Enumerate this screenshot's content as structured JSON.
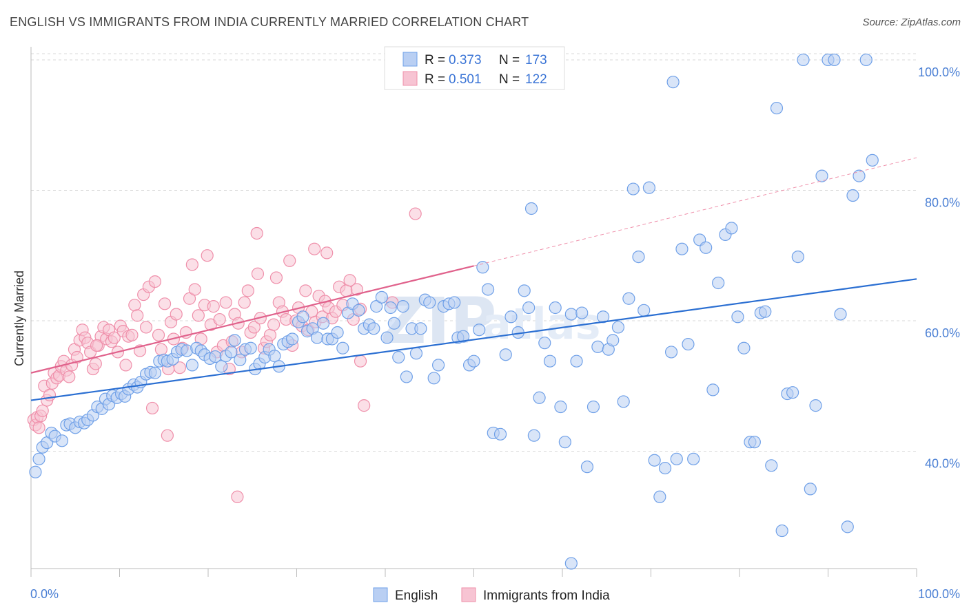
{
  "title": "ENGLISH VS IMMIGRANTS FROM INDIA CURRENTLY MARRIED CORRELATION CHART",
  "source": "Source: ZipAtlas.com",
  "watermark": {
    "zip": "ZIP",
    "atlas": "atlas"
  },
  "colors": {
    "english": "#6fa0e8",
    "english_fill": "#b9cff3",
    "english_line": "#2b6fd2",
    "india": "#ef8faa",
    "india_fill": "#f7c4d3",
    "india_line": "#e0628c",
    "axis_text": "#4a7fd4",
    "grid": "#d8d8d8"
  },
  "legend": {
    "rows": [
      {
        "r_label": "R =",
        "r_value": "0.373",
        "n_label": "N =",
        "n_value": "173"
      },
      {
        "r_label": "R =",
        "r_value": "0.501",
        "n_label": "N =",
        "n_value": "122"
      }
    ]
  },
  "chart_data": {
    "type": "scatter",
    "title": "ENGLISH VS IMMIGRANTS FROM INDIA CURRENTLY MARRIED CORRELATION CHART",
    "xlabel": "",
    "ylabel": "Currently Married",
    "x_tick_labels": [
      "0.0%",
      "100.0%"
    ],
    "y_tick_labels": [
      "40.0%",
      "60.0%",
      "80.0%",
      "100.0%"
    ],
    "y_ticks": [
      40,
      60,
      80,
      100
    ],
    "xlim": [
      0,
      100
    ],
    "ylim": [
      22,
      102
    ],
    "grid": true,
    "legend_position": "top-center and bottom",
    "series": [
      {
        "name": "English",
        "color": "#6fa0e8",
        "r": 0.373,
        "n": 173,
        "trend": {
          "x": [
            0,
            100
          ],
          "y": [
            47.8,
            66.4
          ]
        },
        "points": [
          [
            0.5,
            36.8
          ],
          [
            0.9,
            38.8
          ],
          [
            1.3,
            40.6
          ],
          [
            1.8,
            41.3
          ],
          [
            2.3,
            42.8
          ],
          [
            2.7,
            42.3
          ],
          [
            3.5,
            41.6
          ],
          [
            4,
            44
          ],
          [
            4.4,
            44.2
          ],
          [
            5,
            43.6
          ],
          [
            5.5,
            44.5
          ],
          [
            6,
            44.3
          ],
          [
            6.4,
            44.8
          ],
          [
            7,
            45.5
          ],
          [
            7.5,
            46.8
          ],
          [
            8,
            46.5
          ],
          [
            8.4,
            48
          ],
          [
            8.8,
            47.2
          ],
          [
            9.2,
            48.5
          ],
          [
            9.7,
            48.2
          ],
          [
            10.2,
            48.8
          ],
          [
            10.6,
            48.4
          ],
          [
            11,
            49.5
          ],
          [
            11.6,
            50.2
          ],
          [
            12,
            49.8
          ],
          [
            12.4,
            50.6
          ],
          [
            13,
            51.8
          ],
          [
            13.5,
            52.1
          ],
          [
            14,
            52
          ],
          [
            14.5,
            53.8
          ],
          [
            15,
            54
          ],
          [
            15.4,
            53.8
          ],
          [
            16,
            54.1
          ],
          [
            16.5,
            55.2
          ],
          [
            17,
            55.6
          ],
          [
            17.6,
            55.4
          ],
          [
            18.2,
            53.2
          ],
          [
            18.7,
            55.8
          ],
          [
            19.2,
            55.4
          ],
          [
            19.6,
            54.8
          ],
          [
            20.2,
            54.2
          ],
          [
            20.8,
            54.5
          ],
          [
            21.5,
            53
          ],
          [
            22,
            54.6
          ],
          [
            22.6,
            55.2
          ],
          [
            23,
            57
          ],
          [
            23.6,
            54
          ],
          [
            24.2,
            55.6
          ],
          [
            24.8,
            55.8
          ],
          [
            25.3,
            52.6
          ],
          [
            25.8,
            53.4
          ],
          [
            26.4,
            54.4
          ],
          [
            26.9,
            55.6
          ],
          [
            27.5,
            54.6
          ],
          [
            28,
            53
          ],
          [
            28.5,
            56.4
          ],
          [
            29,
            56.8
          ],
          [
            29.5,
            57.2
          ],
          [
            30.2,
            59.8
          ],
          [
            30.7,
            60.6
          ],
          [
            31.2,
            58.4
          ],
          [
            31.8,
            58.8
          ],
          [
            32.3,
            57.4
          ],
          [
            33,
            59.6
          ],
          [
            33.5,
            57.2
          ],
          [
            34,
            57.2
          ],
          [
            34.6,
            58.2
          ],
          [
            35.2,
            55.8
          ],
          [
            35.8,
            61.2
          ],
          [
            36.3,
            62.6
          ],
          [
            37,
            61.6
          ],
          [
            37.6,
            58.8
          ],
          [
            38.2,
            59.4
          ],
          [
            38.7,
            58.8
          ],
          [
            39,
            62.2
          ],
          [
            39.6,
            63.6
          ],
          [
            40.2,
            57.4
          ],
          [
            40.6,
            62
          ],
          [
            41,
            59.6
          ],
          [
            41.5,
            54.4
          ],
          [
            42,
            62.2
          ],
          [
            42.4,
            51.4
          ],
          [
            43,
            58.8
          ],
          [
            43.5,
            55
          ],
          [
            44,
            58.8
          ],
          [
            44.5,
            63.2
          ],
          [
            45,
            62.8
          ],
          [
            45.5,
            51.2
          ],
          [
            46,
            53.2
          ],
          [
            46.6,
            62.2
          ],
          [
            47.2,
            62.6
          ],
          [
            47.8,
            62.8
          ],
          [
            48.2,
            57.4
          ],
          [
            48.8,
            57.6
          ],
          [
            49.5,
            53.2
          ],
          [
            50,
            53.8
          ],
          [
            50.6,
            58.6
          ],
          [
            51,
            68.2
          ],
          [
            51.6,
            64.8
          ],
          [
            52.2,
            42.8
          ],
          [
            53,
            42.6
          ],
          [
            53.6,
            54.8
          ],
          [
            54.2,
            60.6
          ],
          [
            55,
            58.2
          ],
          [
            55.7,
            64.6
          ],
          [
            56.2,
            62
          ],
          [
            56.8,
            42.4
          ],
          [
            57.4,
            48.2
          ],
          [
            58,
            56.6
          ],
          [
            58.6,
            53.8
          ],
          [
            59.2,
            62
          ],
          [
            59.8,
            46.8
          ],
          [
            60.3,
            41.4
          ],
          [
            61,
            61
          ],
          [
            61.6,
            53.8
          ],
          [
            62.2,
            61.2
          ],
          [
            62.8,
            37.6
          ],
          [
            63.5,
            46.8
          ],
          [
            64,
            56
          ],
          [
            64.6,
            60.6
          ],
          [
            65.2,
            55.6
          ],
          [
            65.7,
            57
          ],
          [
            66.3,
            59
          ],
          [
            66.9,
            47.6
          ],
          [
            67.5,
            63.4
          ],
          [
            68,
            80.2
          ],
          [
            68.6,
            69.8
          ],
          [
            69.2,
            61.6
          ],
          [
            69.8,
            80.4
          ],
          [
            70.4,
            38.6
          ],
          [
            71,
            33
          ],
          [
            71.6,
            37.4
          ],
          [
            72.3,
            55.2
          ],
          [
            72.9,
            38.8
          ],
          [
            73.5,
            71
          ],
          [
            74.2,
            56.4
          ],
          [
            74.8,
            38.8
          ],
          [
            75.5,
            72.4
          ],
          [
            76.2,
            71.2
          ],
          [
            77,
            49.4
          ],
          [
            77.6,
            65.8
          ],
          [
            78.4,
            73.2
          ],
          [
            79.1,
            74.2
          ],
          [
            79.8,
            60.6
          ],
          [
            80.5,
            55.8
          ],
          [
            81.2,
            41.4
          ],
          [
            81.7,
            41.4
          ],
          [
            82.4,
            61.2
          ],
          [
            82.9,
            61.4
          ],
          [
            83.6,
            37.8
          ],
          [
            84.2,
            92.6
          ],
          [
            84.8,
            27.8
          ],
          [
            85.4,
            48.8
          ],
          [
            86,
            49
          ],
          [
            86.6,
            69.8
          ],
          [
            87.2,
            100
          ],
          [
            88,
            34.2
          ],
          [
            88.6,
            47
          ],
          [
            89.3,
            82.2
          ],
          [
            90,
            100
          ],
          [
            90.7,
            100
          ],
          [
            91.4,
            61
          ],
          [
            92.2,
            28.4
          ],
          [
            92.8,
            79.2
          ],
          [
            93.5,
            82.2
          ],
          [
            94.3,
            100
          ],
          [
            95,
            84.6
          ],
          [
            72.5,
            96.6
          ],
          [
            61,
            22.8
          ],
          [
            56.5,
            77.2
          ]
        ]
      },
      {
        "name": "Immigrants from India",
        "color": "#ef8faa",
        "r": 0.501,
        "n": 122,
        "trend": {
          "x": [
            0,
            50
          ],
          "y": [
            52,
            68.4
          ]
        },
        "trend_dashed": {
          "x": [
            50,
            100
          ],
          "y": [
            68.4,
            85
          ]
        },
        "points": [
          [
            0.3,
            44.8
          ],
          [
            0.5,
            44
          ],
          [
            0.7,
            45.2
          ],
          [
            0.9,
            43.6
          ],
          [
            1.1,
            45.4
          ],
          [
            1.3,
            46.2
          ],
          [
            1.5,
            50
          ],
          [
            1.8,
            47.8
          ],
          [
            2.1,
            48.6
          ],
          [
            2.4,
            50.4
          ],
          [
            2.6,
            52
          ],
          [
            2.9,
            51.2
          ],
          [
            3.2,
            51.6
          ],
          [
            3.4,
            53
          ],
          [
            3.7,
            53.8
          ],
          [
            4,
            52.4
          ],
          [
            4.3,
            51.4
          ],
          [
            4.6,
            53.2
          ],
          [
            4.9,
            55.6
          ],
          [
            5.2,
            54.4
          ],
          [
            5.5,
            57
          ],
          [
            5.8,
            58.6
          ],
          [
            6.1,
            57.4
          ],
          [
            6.4,
            56.6
          ],
          [
            6.7,
            55.2
          ],
          [
            7,
            52.6
          ],
          [
            7.3,
            53.4
          ],
          [
            7.6,
            56.2
          ],
          [
            7.9,
            57.6
          ],
          [
            8.2,
            59
          ],
          [
            8.5,
            57.2
          ],
          [
            8.8,
            58.6
          ],
          [
            9.1,
            56.8
          ],
          [
            9.4,
            57.4
          ],
          [
            9.8,
            55.2
          ],
          [
            10.1,
            59.2
          ],
          [
            10.4,
            58.4
          ],
          [
            10.7,
            53.2
          ],
          [
            11,
            57.6
          ],
          [
            11.4,
            57.8
          ],
          [
            11.7,
            62.4
          ],
          [
            12,
            60.8
          ],
          [
            12.3,
            55.4
          ],
          [
            12.7,
            64
          ],
          [
            13,
            59
          ],
          [
            13.3,
            65.2
          ],
          [
            13.7,
            46.6
          ],
          [
            14,
            66
          ],
          [
            14.4,
            57.8
          ],
          [
            14.7,
            55.6
          ],
          [
            15.1,
            62.6
          ],
          [
            15.4,
            42.4
          ],
          [
            15.8,
            59.8
          ],
          [
            16.1,
            57.2
          ],
          [
            16.4,
            61
          ],
          [
            16.8,
            52.8
          ],
          [
            17.1,
            55.8
          ],
          [
            17.5,
            58.2
          ],
          [
            17.9,
            63.4
          ],
          [
            18.2,
            68.6
          ],
          [
            18.5,
            64.8
          ],
          [
            18.9,
            60.8
          ],
          [
            19.2,
            57.2
          ],
          [
            19.6,
            62.4
          ],
          [
            19.9,
            70
          ],
          [
            20.3,
            59.4
          ],
          [
            20.6,
            62.2
          ],
          [
            21,
            55.2
          ],
          [
            21.3,
            60.2
          ],
          [
            21.7,
            56.2
          ],
          [
            22,
            62.8
          ],
          [
            22.4,
            52.6
          ],
          [
            22.7,
            56.8
          ],
          [
            23,
            61
          ],
          [
            23.4,
            59.6
          ],
          [
            23.8,
            55.2
          ],
          [
            24.1,
            62.8
          ],
          [
            24.5,
            64.6
          ],
          [
            24.8,
            58.2
          ],
          [
            25.2,
            59
          ],
          [
            25.6,
            67.2
          ],
          [
            25.9,
            60.4
          ],
          [
            26.3,
            55.8
          ],
          [
            26.6,
            56.8
          ],
          [
            27,
            57.8
          ],
          [
            27.4,
            59.4
          ],
          [
            27.7,
            66.6
          ],
          [
            28,
            62.8
          ],
          [
            28.4,
            61.4
          ],
          [
            28.8,
            60.2
          ],
          [
            29.2,
            69.2
          ],
          [
            29.5,
            56.2
          ],
          [
            29.9,
            60
          ],
          [
            30.2,
            62
          ],
          [
            30.6,
            59.2
          ],
          [
            31,
            64.6
          ],
          [
            31.3,
            58.6
          ],
          [
            31.7,
            61.4
          ],
          [
            32.1,
            59.8
          ],
          [
            32.5,
            63.8
          ],
          [
            32.9,
            60.6
          ],
          [
            33.2,
            63
          ],
          [
            33.6,
            62
          ],
          [
            34,
            60.4
          ],
          [
            34.4,
            61.4
          ],
          [
            34.8,
            65.2
          ],
          [
            35.2,
            62.4
          ],
          [
            35.6,
            64.6
          ],
          [
            36,
            66.2
          ],
          [
            36.4,
            60.2
          ],
          [
            36.8,
            64.8
          ],
          [
            37.2,
            61.8
          ],
          [
            7.4,
            56.2
          ],
          [
            15.5,
            52.6
          ],
          [
            23.3,
            33
          ],
          [
            25.5,
            73.4
          ],
          [
            32,
            71
          ],
          [
            33.4,
            70.4
          ],
          [
            37.2,
            53.8
          ],
          [
            40.8,
            62.8
          ],
          [
            43.4,
            76.4
          ],
          [
            37.6,
            47
          ]
        ]
      }
    ]
  },
  "bottom_legend": {
    "items": [
      "English",
      "Immigrants from India"
    ]
  }
}
